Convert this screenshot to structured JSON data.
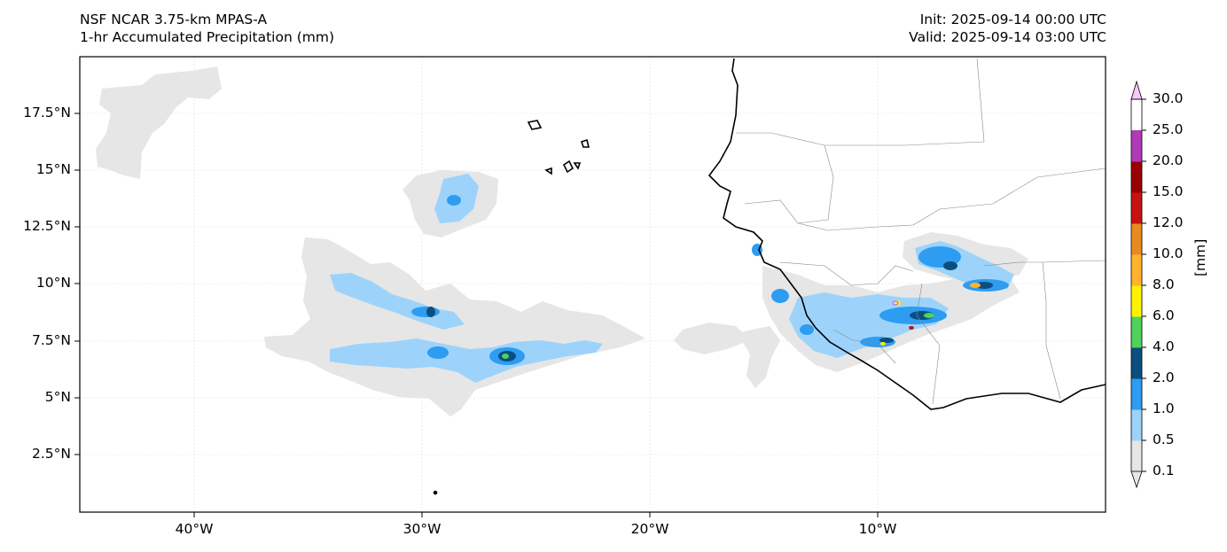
{
  "title": {
    "model": "NSF NCAR 3.75-km MPAS-A",
    "field": "1-hr Accumulated Precipitation (mm)",
    "init": "Init: 2025-09-14 00:00 UTC",
    "valid": "Valid: 2025-09-14 03:00 UTC"
  },
  "map": {
    "lat_ticks": [
      "17.5°N",
      "15°N",
      "12.5°N",
      "10°N",
      "7.5°N",
      "5°N",
      "2.5°N"
    ],
    "lon_ticks": [
      "40°W",
      "30°W",
      "20°W",
      "10°W"
    ],
    "extent": {
      "lon_min": -45,
      "lon_max": 0,
      "lat_min": 0,
      "lat_max": 20
    }
  },
  "colorbar": {
    "label": "[mm]",
    "levels": [
      "0.1",
      "0.5",
      "1.0",
      "2.0",
      "4.0",
      "6.0",
      "8.0",
      "10.0",
      "12.0",
      "15.0",
      "20.0",
      "25.0",
      "30.0"
    ],
    "colors": [
      "#e6e6e6",
      "#9dd3fb",
      "#2e9cf0",
      "#0b4e80",
      "#4fd35a",
      "#fff200",
      "#ffb22c",
      "#e98a20",
      "#c81212",
      "#990000",
      "#b03ab8",
      "#f8c8f8"
    ],
    "extend": "both"
  }
}
